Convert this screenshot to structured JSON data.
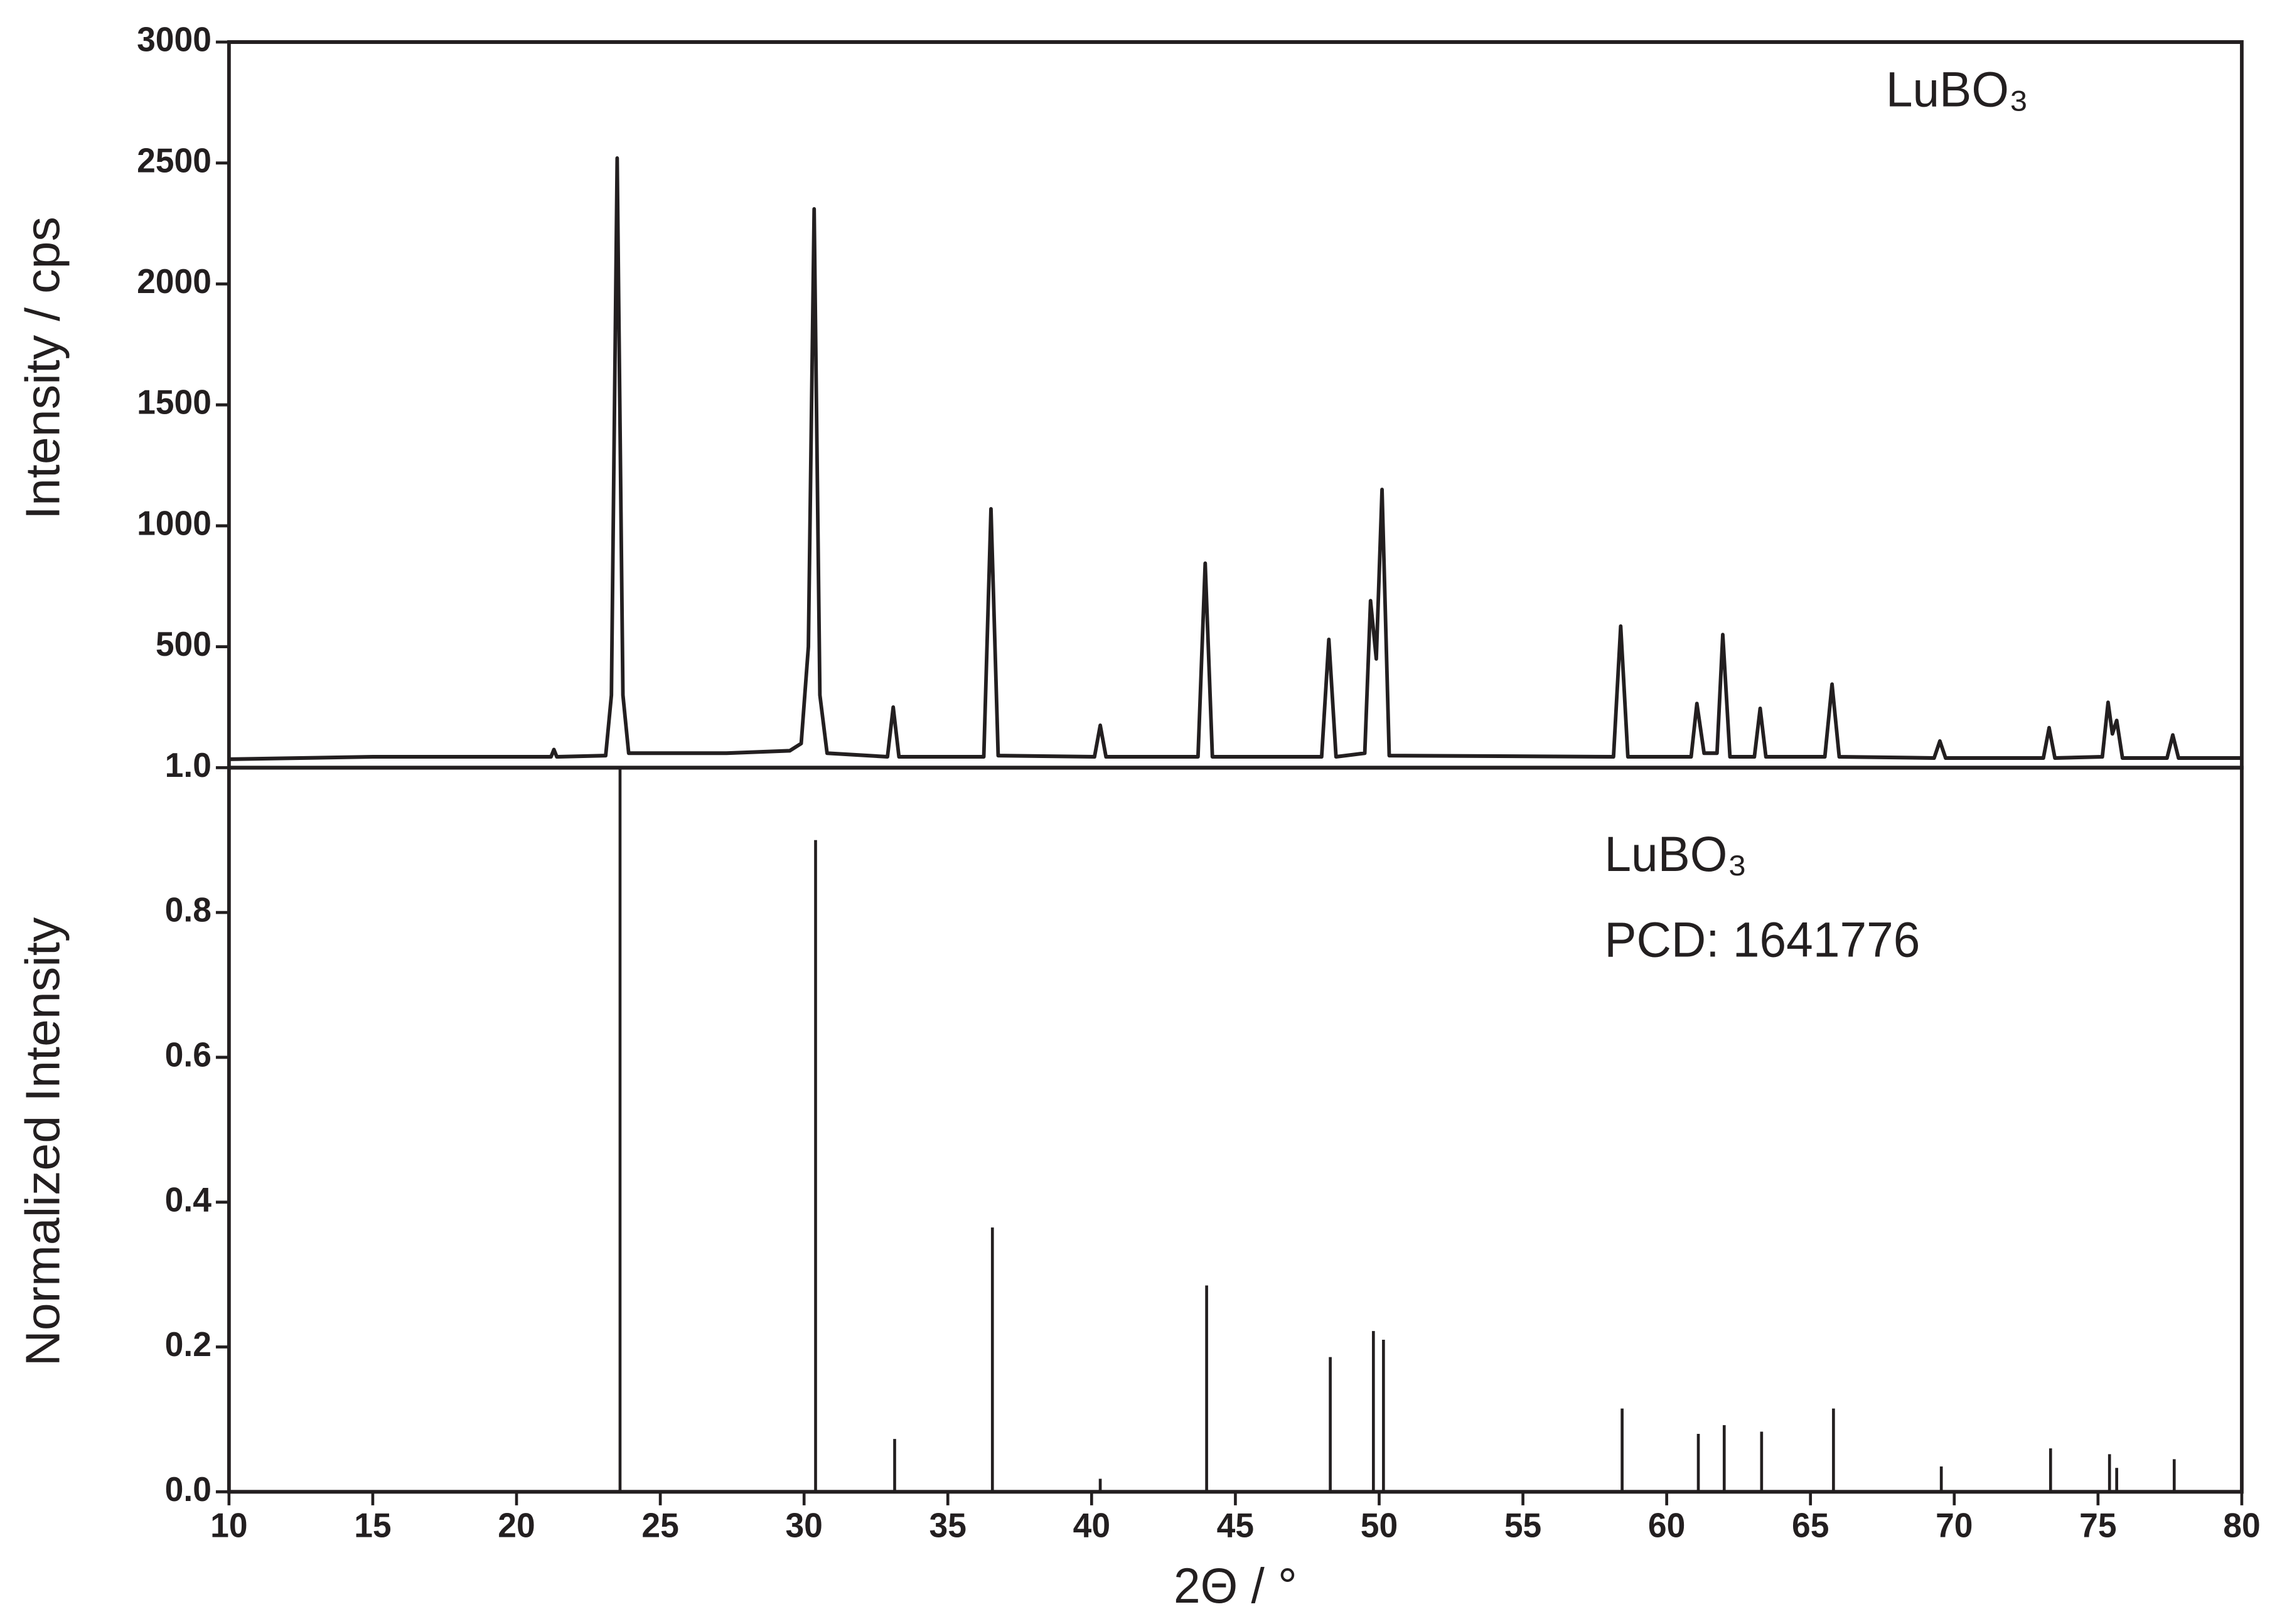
{
  "chart_data": [
    {
      "type": "line",
      "y_label": "Intensity / cps",
      "annotation": "LuBO₃",
      "color": "#231f20",
      "xlim": [
        10,
        80
      ],
      "ylim": [
        0,
        3000
      ],
      "yticks": [
        500,
        1000,
        1500,
        2000,
        2500,
        3000
      ],
      "x": [
        10,
        15,
        20,
        21.2,
        21.3,
        21.4,
        23.1,
        23.3,
        23.5,
        23.7,
        23.9,
        27.3,
        29.5,
        29.9,
        30.15,
        30.35,
        30.55,
        30.8,
        32.9,
        33.1,
        33.3,
        36.25,
        36.5,
        36.75,
        40.1,
        40.3,
        40.5,
        43.7,
        43.95,
        44.2,
        48.0,
        48.25,
        48.5,
        49.5,
        49.7,
        49.9,
        50.1,
        50.35,
        58.15,
        58.4,
        58.65,
        60.85,
        61.05,
        61.3,
        61.75,
        61.95,
        62.2,
        63.05,
        63.25,
        63.45,
        65.5,
        65.75,
        66.0,
        69.3,
        69.5,
        69.7,
        73.1,
        73.3,
        73.5,
        75.15,
        75.35,
        75.5,
        75.65,
        75.85,
        77.4,
        77.6,
        77.8,
        80
      ],
      "values": [
        35,
        45,
        45,
        45,
        75,
        45,
        50,
        300,
        2520,
        300,
        60,
        60,
        70,
        100,
        500,
        2310,
        300,
        60,
        45,
        250,
        45,
        45,
        1070,
        50,
        45,
        175,
        45,
        45,
        845,
        45,
        45,
        530,
        45,
        60,
        690,
        450,
        1150,
        50,
        45,
        585,
        45,
        45,
        265,
        60,
        60,
        550,
        45,
        45,
        245,
        45,
        45,
        345,
        45,
        40,
        110,
        40,
        40,
        165,
        40,
        45,
        270,
        140,
        195,
        40,
        40,
        135,
        40,
        40
      ]
    },
    {
      "type": "stem",
      "x_label": "2Θ / °",
      "y_label": "Normalized Intensity",
      "annotations": [
        "LuBO₃",
        "PCD: 1641776"
      ],
      "color": "#231f20",
      "xlim": [
        10,
        80
      ],
      "xticks": [
        10,
        15,
        20,
        25,
        30,
        35,
        40,
        45,
        50,
        55,
        60,
        65,
        70,
        75,
        80
      ],
      "ylim": [
        0,
        1
      ],
      "yticks": [
        {
          "value": 0,
          "label": "0.0"
        },
        0.2,
        0.4,
        0.6,
        0.8,
        {
          "value": 1,
          "label": "1.0"
        }
      ],
      "x": [
        23.6,
        30.4,
        33.15,
        36.55,
        40.3,
        44.0,
        48.3,
        49.8,
        50.15,
        58.45,
        61.1,
        62.0,
        63.3,
        65.8,
        69.55,
        73.35,
        75.4,
        75.65,
        77.65
      ],
      "values": [
        1.0,
        0.9,
        0.073,
        0.365,
        0.018,
        0.285,
        0.186,
        0.222,
        0.21,
        0.115,
        0.08,
        0.092,
        0.083,
        0.115,
        0.035,
        0.06,
        0.052,
        0.033,
        0.045
      ]
    }
  ]
}
